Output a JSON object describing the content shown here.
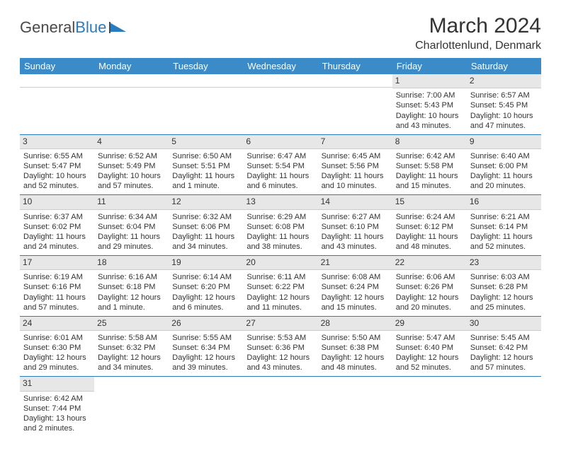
{
  "logo": {
    "word1": "General",
    "word2": "Blue"
  },
  "title": "March 2024",
  "location": "Charlottenlund, Denmark",
  "colors": {
    "header_bg": "#3b8bc9",
    "header_text": "#ffffff",
    "daynum_bg": "#e7e7e7",
    "cell_border": "#2b7bbf",
    "logo_blue": "#2b7bbf",
    "body_text": "#333333"
  },
  "days_of_week": [
    "Sunday",
    "Monday",
    "Tuesday",
    "Wednesday",
    "Thursday",
    "Friday",
    "Saturday"
  ],
  "weeks": [
    [
      {
        "blank": true
      },
      {
        "blank": true
      },
      {
        "blank": true
      },
      {
        "blank": true
      },
      {
        "blank": true
      },
      {
        "n": "1",
        "sr": "Sunrise: 7:00 AM",
        "ss": "Sunset: 5:43 PM",
        "d1": "Daylight: 10 hours",
        "d2": "and 43 minutes."
      },
      {
        "n": "2",
        "sr": "Sunrise: 6:57 AM",
        "ss": "Sunset: 5:45 PM",
        "d1": "Daylight: 10 hours",
        "d2": "and 47 minutes."
      }
    ],
    [
      {
        "n": "3",
        "sr": "Sunrise: 6:55 AM",
        "ss": "Sunset: 5:47 PM",
        "d1": "Daylight: 10 hours",
        "d2": "and 52 minutes."
      },
      {
        "n": "4",
        "sr": "Sunrise: 6:52 AM",
        "ss": "Sunset: 5:49 PM",
        "d1": "Daylight: 10 hours",
        "d2": "and 57 minutes."
      },
      {
        "n": "5",
        "sr": "Sunrise: 6:50 AM",
        "ss": "Sunset: 5:51 PM",
        "d1": "Daylight: 11 hours",
        "d2": "and 1 minute."
      },
      {
        "n": "6",
        "sr": "Sunrise: 6:47 AM",
        "ss": "Sunset: 5:54 PM",
        "d1": "Daylight: 11 hours",
        "d2": "and 6 minutes."
      },
      {
        "n": "7",
        "sr": "Sunrise: 6:45 AM",
        "ss": "Sunset: 5:56 PM",
        "d1": "Daylight: 11 hours",
        "d2": "and 10 minutes."
      },
      {
        "n": "8",
        "sr": "Sunrise: 6:42 AM",
        "ss": "Sunset: 5:58 PM",
        "d1": "Daylight: 11 hours",
        "d2": "and 15 minutes."
      },
      {
        "n": "9",
        "sr": "Sunrise: 6:40 AM",
        "ss": "Sunset: 6:00 PM",
        "d1": "Daylight: 11 hours",
        "d2": "and 20 minutes."
      }
    ],
    [
      {
        "n": "10",
        "sr": "Sunrise: 6:37 AM",
        "ss": "Sunset: 6:02 PM",
        "d1": "Daylight: 11 hours",
        "d2": "and 24 minutes."
      },
      {
        "n": "11",
        "sr": "Sunrise: 6:34 AM",
        "ss": "Sunset: 6:04 PM",
        "d1": "Daylight: 11 hours",
        "d2": "and 29 minutes."
      },
      {
        "n": "12",
        "sr": "Sunrise: 6:32 AM",
        "ss": "Sunset: 6:06 PM",
        "d1": "Daylight: 11 hours",
        "d2": "and 34 minutes."
      },
      {
        "n": "13",
        "sr": "Sunrise: 6:29 AM",
        "ss": "Sunset: 6:08 PM",
        "d1": "Daylight: 11 hours",
        "d2": "and 38 minutes."
      },
      {
        "n": "14",
        "sr": "Sunrise: 6:27 AM",
        "ss": "Sunset: 6:10 PM",
        "d1": "Daylight: 11 hours",
        "d2": "and 43 minutes."
      },
      {
        "n": "15",
        "sr": "Sunrise: 6:24 AM",
        "ss": "Sunset: 6:12 PM",
        "d1": "Daylight: 11 hours",
        "d2": "and 48 minutes."
      },
      {
        "n": "16",
        "sr": "Sunrise: 6:21 AM",
        "ss": "Sunset: 6:14 PM",
        "d1": "Daylight: 11 hours",
        "d2": "and 52 minutes."
      }
    ],
    [
      {
        "n": "17",
        "sr": "Sunrise: 6:19 AM",
        "ss": "Sunset: 6:16 PM",
        "d1": "Daylight: 11 hours",
        "d2": "and 57 minutes."
      },
      {
        "n": "18",
        "sr": "Sunrise: 6:16 AM",
        "ss": "Sunset: 6:18 PM",
        "d1": "Daylight: 12 hours",
        "d2": "and 1 minute."
      },
      {
        "n": "19",
        "sr": "Sunrise: 6:14 AM",
        "ss": "Sunset: 6:20 PM",
        "d1": "Daylight: 12 hours",
        "d2": "and 6 minutes."
      },
      {
        "n": "20",
        "sr": "Sunrise: 6:11 AM",
        "ss": "Sunset: 6:22 PM",
        "d1": "Daylight: 12 hours",
        "d2": "and 11 minutes."
      },
      {
        "n": "21",
        "sr": "Sunrise: 6:08 AM",
        "ss": "Sunset: 6:24 PM",
        "d1": "Daylight: 12 hours",
        "d2": "and 15 minutes."
      },
      {
        "n": "22",
        "sr": "Sunrise: 6:06 AM",
        "ss": "Sunset: 6:26 PM",
        "d1": "Daylight: 12 hours",
        "d2": "and 20 minutes."
      },
      {
        "n": "23",
        "sr": "Sunrise: 6:03 AM",
        "ss": "Sunset: 6:28 PM",
        "d1": "Daylight: 12 hours",
        "d2": "and 25 minutes."
      }
    ],
    [
      {
        "n": "24",
        "sr": "Sunrise: 6:01 AM",
        "ss": "Sunset: 6:30 PM",
        "d1": "Daylight: 12 hours",
        "d2": "and 29 minutes."
      },
      {
        "n": "25",
        "sr": "Sunrise: 5:58 AM",
        "ss": "Sunset: 6:32 PM",
        "d1": "Daylight: 12 hours",
        "d2": "and 34 minutes."
      },
      {
        "n": "26",
        "sr": "Sunrise: 5:55 AM",
        "ss": "Sunset: 6:34 PM",
        "d1": "Daylight: 12 hours",
        "d2": "and 39 minutes."
      },
      {
        "n": "27",
        "sr": "Sunrise: 5:53 AM",
        "ss": "Sunset: 6:36 PM",
        "d1": "Daylight: 12 hours",
        "d2": "and 43 minutes."
      },
      {
        "n": "28",
        "sr": "Sunrise: 5:50 AM",
        "ss": "Sunset: 6:38 PM",
        "d1": "Daylight: 12 hours",
        "d2": "and 48 minutes."
      },
      {
        "n": "29",
        "sr": "Sunrise: 5:47 AM",
        "ss": "Sunset: 6:40 PM",
        "d1": "Daylight: 12 hours",
        "d2": "and 52 minutes."
      },
      {
        "n": "30",
        "sr": "Sunrise: 5:45 AM",
        "ss": "Sunset: 6:42 PM",
        "d1": "Daylight: 12 hours",
        "d2": "and 57 minutes."
      }
    ],
    [
      {
        "n": "31",
        "sr": "Sunrise: 6:42 AM",
        "ss": "Sunset: 7:44 PM",
        "d1": "Daylight: 13 hours",
        "d2": "and 2 minutes."
      },
      {
        "blank": true
      },
      {
        "blank": true
      },
      {
        "blank": true
      },
      {
        "blank": true
      },
      {
        "blank": true
      },
      {
        "blank": true
      }
    ]
  ]
}
